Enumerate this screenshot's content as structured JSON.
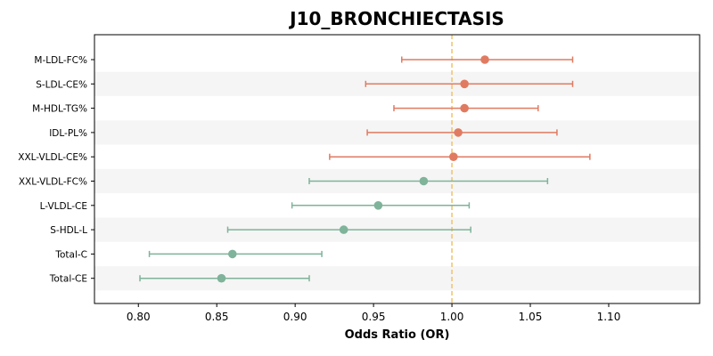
{
  "chart_data": {
    "type": "scatter",
    "subtype": "forest-plot",
    "title": "J10_BRONCHIECTASIS",
    "xlabel": "Odds Ratio (OR)",
    "ylabel": "",
    "xlim": [
      0.772,
      1.158
    ],
    "xticks": [
      "0.80",
      "0.85",
      "0.90",
      "0.95",
      "1.00",
      "1.05",
      "1.10"
    ],
    "reference_line": 1.0,
    "reference_line_color": "#f0c674",
    "increase_color": "#e07b61",
    "decrease_color": "#7fb39a",
    "stripe_color": "#f5f5f5",
    "categories": [
      "M-LDL-FC%",
      "S-LDL-CE%",
      "M-HDL-TG%",
      "IDL-PL%",
      "XXL-VLDL-CE%",
      "XXL-VLDL-FC%",
      "L-VLDL-CE",
      "S-HDL-L",
      "Total-C",
      "Total-CE"
    ],
    "series": [
      {
        "or": [
          1.021,
          1.008,
          1.008,
          1.004,
          1.001,
          0.982,
          0.953,
          0.931,
          0.86,
          0.853
        ],
        "ci_low": [
          0.968,
          0.945,
          0.963,
          0.946,
          0.922,
          0.909,
          0.898,
          0.857,
          0.807,
          0.801
        ],
        "ci_high": [
          1.077,
          1.077,
          1.055,
          1.067,
          1.088,
          1.061,
          1.011,
          1.012,
          0.917,
          0.909
        ]
      }
    ],
    "grid": false
  }
}
